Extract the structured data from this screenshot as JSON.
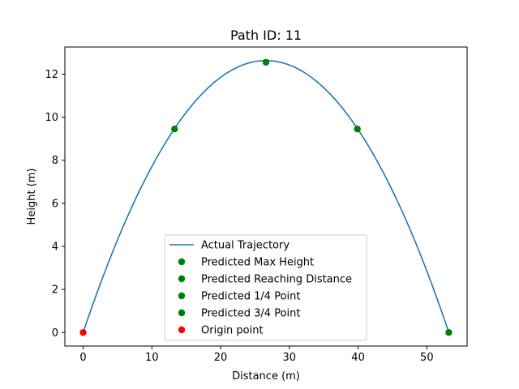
{
  "chart_data": {
    "type": "line",
    "title": "Path ID: 11",
    "xlabel": "Distance (m)",
    "ylabel": "Height (m)",
    "xlim": [
      -2.66,
      55.86
    ],
    "ylim": [
      -0.63,
      13.26
    ],
    "x_ticks": [
      0,
      10,
      20,
      30,
      40,
      50
    ],
    "y_ticks": [
      0,
      2,
      4,
      6,
      8,
      10,
      12
    ],
    "grid": false,
    "legend_position": "lower center",
    "trajectory": {
      "name": "Actual Trajectory",
      "color": "#1f77b4",
      "range": 53.2,
      "max_height": 12.63
    },
    "points": [
      {
        "name": "Predicted Max Height",
        "x": 26.6,
        "y": 12.55,
        "color": "#008000"
      },
      {
        "name": "Predicted Reaching Distance",
        "x": 53.2,
        "y": 0.0,
        "color": "#008000"
      },
      {
        "name": "Predicted 1/4 Point",
        "x": 13.3,
        "y": 9.45,
        "color": "#008000"
      },
      {
        "name": "Predicted 3/4 Point",
        "x": 39.9,
        "y": 9.45,
        "color": "#008000"
      },
      {
        "name": "Origin point",
        "x": 0.0,
        "y": 0.0,
        "color": "#ff0000"
      }
    ]
  }
}
